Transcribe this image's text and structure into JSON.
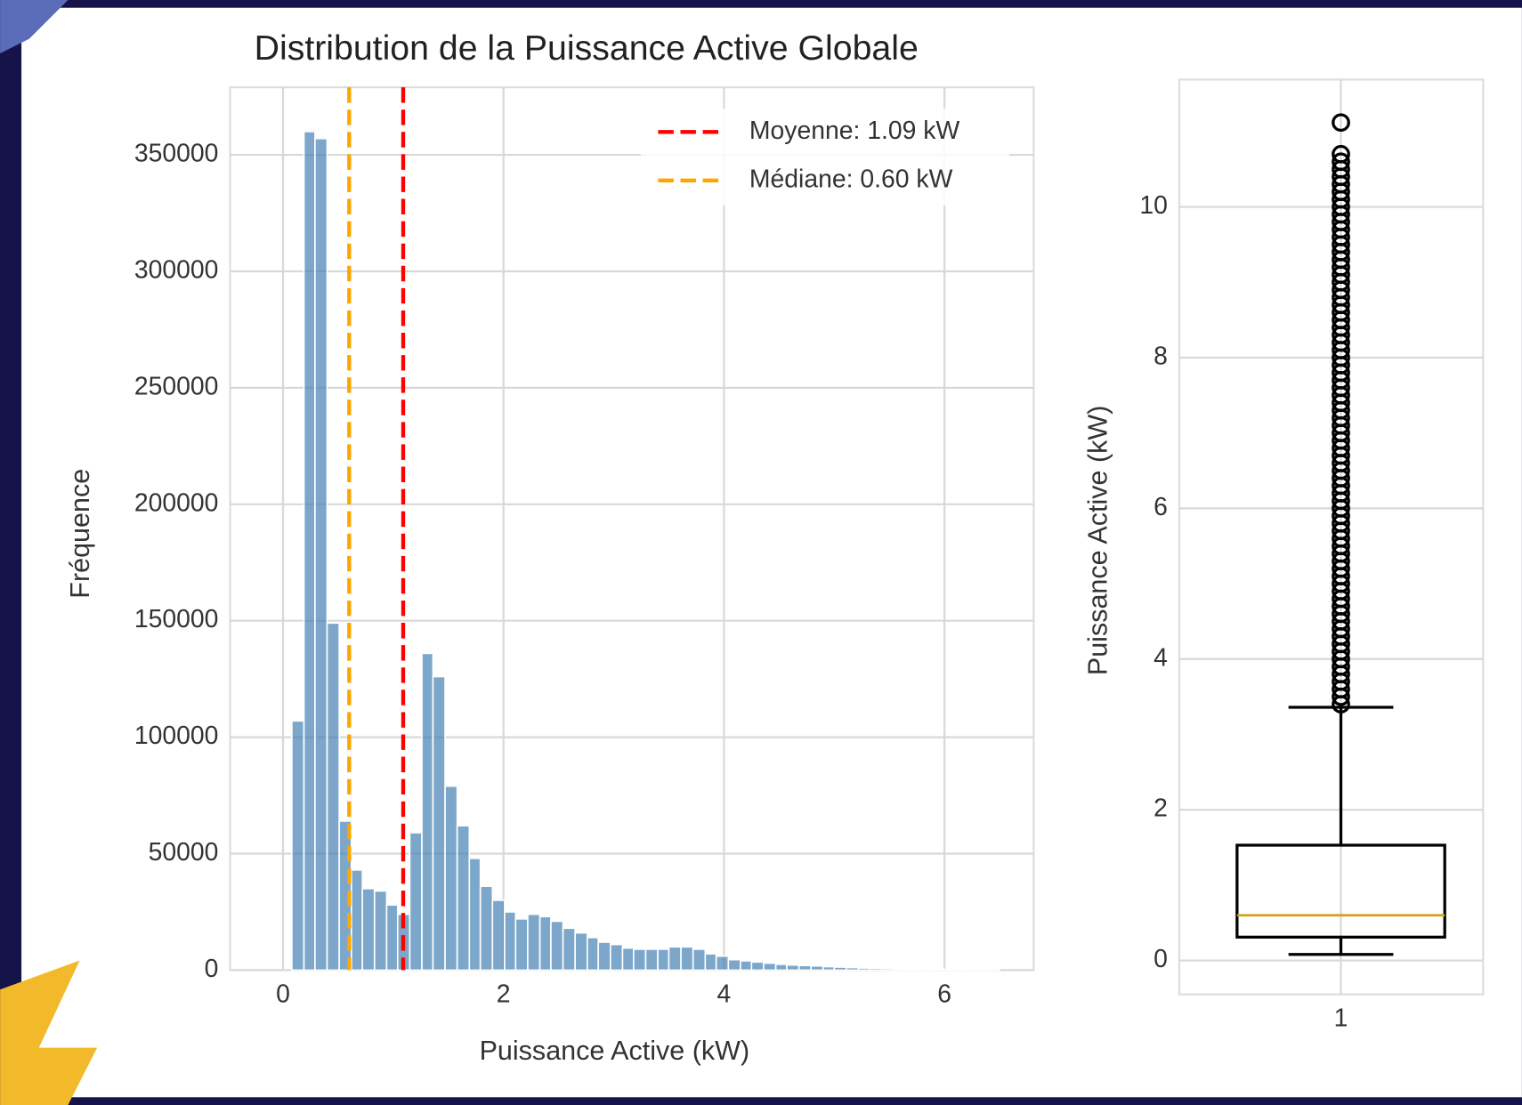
{
  "chart_data": [
    {
      "type": "histogram",
      "title": "Distribution de la Puissance Active Globale",
      "x_label": "Puissance Active (kW)",
      "y_label": "Fréquence",
      "bins": [
        0.08,
        0.19,
        0.29,
        0.4,
        0.51,
        0.62,
        0.72,
        0.83,
        0.94,
        1.04,
        1.15,
        1.26,
        1.36,
        1.47,
        1.58,
        1.69,
        1.79,
        1.9,
        2.01,
        2.11,
        2.22,
        2.33,
        2.43,
        2.54,
        2.65,
        2.76,
        2.86,
        2.97,
        3.08,
        3.18,
        3.29,
        3.4,
        3.5,
        3.61,
        3.72,
        3.83,
        3.93,
        4.04,
        4.15,
        4.25,
        4.36,
        4.47,
        4.57,
        4.68,
        4.79,
        4.9,
        5.0,
        5.11,
        5.22,
        5.32,
        5.43,
        5.54,
        5.64,
        5.75,
        5.86,
        5.97,
        6.07,
        6.18,
        6.29,
        6.39,
        6.5
      ],
      "values": [
        107000,
        360000,
        357000,
        149000,
        64000,
        43000,
        35000,
        34000,
        28000,
        24000,
        59000,
        136000,
        126000,
        79000,
        62000,
        48000,
        36000,
        30000,
        25000,
        22000,
        24000,
        23000,
        21000,
        18000,
        16000,
        14000,
        12000,
        11000,
        9500,
        9000,
        9000,
        9000,
        10000,
        10000,
        9000,
        7000,
        6000,
        4500,
        4000,
        3500,
        3000,
        2500,
        2200,
        2000,
        1800,
        1500,
        1300,
        1100,
        900,
        800,
        700,
        600,
        500,
        450,
        400,
        350,
        300,
        250,
        200,
        150
      ],
      "color": "#4682b4",
      "xlim": [
        -0.48,
        6.81
      ],
      "ylim": [
        0,
        379000
      ],
      "xticks": [
        0,
        2,
        4,
        6
      ],
      "yticks": [
        0,
        50000,
        100000,
        150000,
        200000,
        250000,
        300000,
        350000
      ],
      "grid": true,
      "legend": "upper right",
      "reference_lines": [
        {
          "label": "Moyenne: 1.09 kW",
          "value": 1.09,
          "color": "#ff0000"
        },
        {
          "label": "Médiane: 0.60 kW",
          "value": 0.6,
          "color": "#ffa500"
        }
      ]
    },
    {
      "type": "box",
      "y_label": "Puissance Active (kW)",
      "categories": [
        "1"
      ],
      "ylim": [
        -0.45,
        11.69
      ],
      "yticks": [
        0,
        2,
        4,
        6,
        8,
        10
      ],
      "grid": true,
      "median_color": "#d4a017",
      "boxes": [
        {
          "whislo": 0.08,
          "q1": 0.31,
          "med": 0.6,
          "q3": 1.53,
          "whishi": 3.36,
          "fliers": [
            3.4,
            3.5,
            3.6,
            3.7,
            3.8,
            3.9,
            4.0,
            4.1,
            4.2,
            4.3,
            4.4,
            4.5,
            4.6,
            4.7,
            4.8,
            4.9,
            5.0,
            5.1,
            5.2,
            5.3,
            5.4,
            5.5,
            5.6,
            5.7,
            5.8,
            5.9,
            6.0,
            6.1,
            6.2,
            6.3,
            6.4,
            6.5,
            6.6,
            6.7,
            6.8,
            6.9,
            7.0,
            7.1,
            7.2,
            7.3,
            7.4,
            7.5,
            7.6,
            7.7,
            7.8,
            7.9,
            8.0,
            8.1,
            8.2,
            8.3,
            8.4,
            8.5,
            8.6,
            8.7,
            8.8,
            8.9,
            9.0,
            9.1,
            9.2,
            9.3,
            9.4,
            9.5,
            9.6,
            9.7,
            9.8,
            9.9,
            10.0,
            10.1,
            10.2,
            10.3,
            10.4,
            10.5,
            10.6,
            10.7,
            11.12
          ]
        }
      ]
    }
  ]
}
